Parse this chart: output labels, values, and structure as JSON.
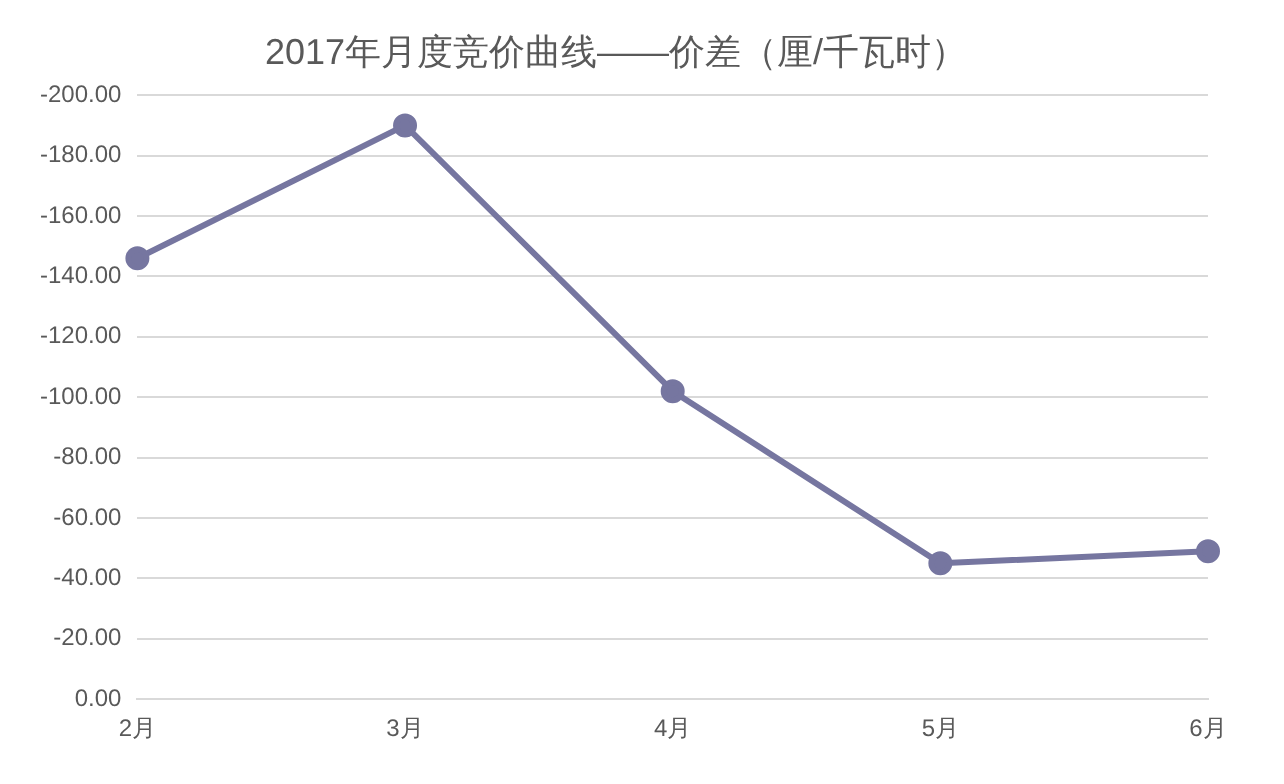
{
  "chart_data": {
    "type": "line",
    "title": "2017年月度竞价曲线——价差（厘/千瓦时）",
    "categories": [
      "2月",
      "3月",
      "4月",
      "5月",
      "6月"
    ],
    "series": [
      {
        "color": "#7676a0",
        "values": [
          -146,
          -190,
          -102,
          -45,
          -49
        ]
      }
    ],
    "ylim": [
      0,
      -200
    ],
    "yticks": [
      {
        "value": 0,
        "label": "0.00"
      },
      {
        "value": -20,
        "label": "-20.00"
      },
      {
        "value": -40,
        "label": "-40.00"
      },
      {
        "value": -60,
        "label": "-60.00"
      },
      {
        "value": -80,
        "label": "-80.00"
      },
      {
        "value": -100,
        "label": "-100.00"
      },
      {
        "value": -120,
        "label": "-120.00"
      },
      {
        "value": -140,
        "label": "-140.00"
      },
      {
        "value": -160,
        "label": "-160.00"
      },
      {
        "value": -180,
        "label": "-180.00"
      },
      {
        "value": -200,
        "label": "-200.00"
      }
    ],
    "grid": "y",
    "marker": "circle",
    "line_style": "solid",
    "legend": false
  }
}
